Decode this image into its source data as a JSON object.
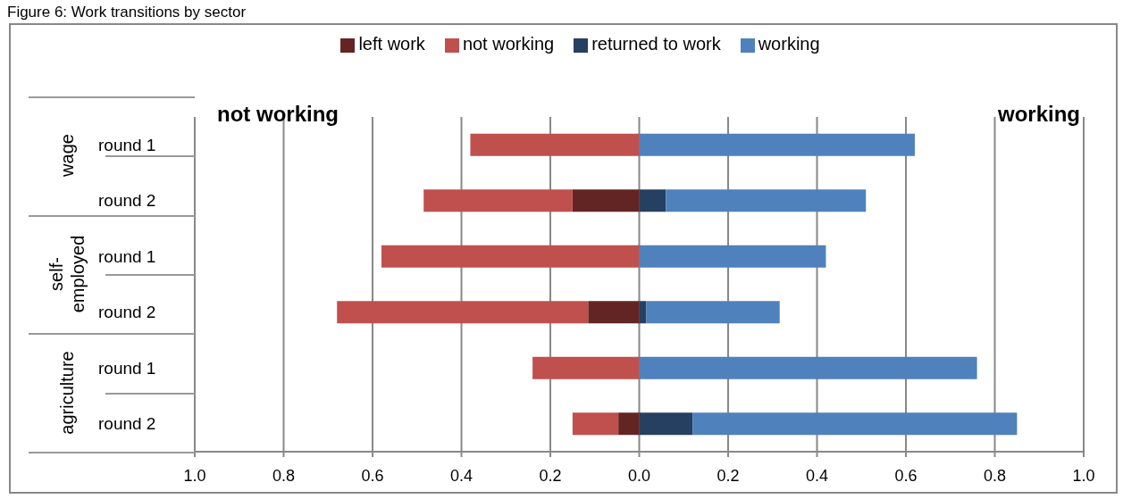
{
  "chart_data": {
    "type": "bar",
    "title": "Figure 6: Work transitions by sector",
    "orientation": "horizontal",
    "stacked": true,
    "categories": [
      "round 1",
      "round 2",
      "round 1",
      "round 2",
      "round 1",
      "round 2"
    ],
    "series": [
      {
        "name": "returned to work",
        "color": "#254061",
        "values": [
          0,
          0.06,
          0,
          0.016,
          0,
          0.12
        ]
      },
      {
        "name": "working",
        "color": "#4f81bd",
        "values": [
          0.62,
          0.45,
          0.42,
          0.3,
          0.76,
          0.73
        ]
      },
      {
        "name": "left work",
        "color": "#632523",
        "values": [
          0,
          -0.15,
          0,
          -0.115,
          0,
          -0.047
        ]
      },
      {
        "name": "not working",
        "color": "#c0504d",
        "values": [
          -0.38,
          -0.335,
          -0.58,
          -0.565,
          -0.24,
          -0.103
        ]
      }
    ],
    "xlim": [
      -1,
      1
    ],
    "xticks": [
      {
        "value": -1,
        "label": "1.0"
      },
      {
        "value": -0.8,
        "label": "0.8"
      },
      {
        "value": -0.6,
        "label": "0.6"
      },
      {
        "value": -0.4,
        "label": "0.4"
      },
      {
        "value": -0.2,
        "label": "0.2"
      },
      {
        "value": 0,
        "label": "0.0"
      },
      {
        "value": 0.2,
        "label": "0.2"
      },
      {
        "value": 0.4,
        "label": "0.4"
      },
      {
        "value": 0.6,
        "label": "0.6"
      },
      {
        "value": 0.8,
        "label": "0.8"
      },
      {
        "value": 1,
        "label": "1.0"
      }
    ],
    "annotations": [
      "not working",
      "working",
      "wage",
      "self-employed",
      "agriculture"
    ],
    "grid": "x",
    "legend": "top"
  }
}
